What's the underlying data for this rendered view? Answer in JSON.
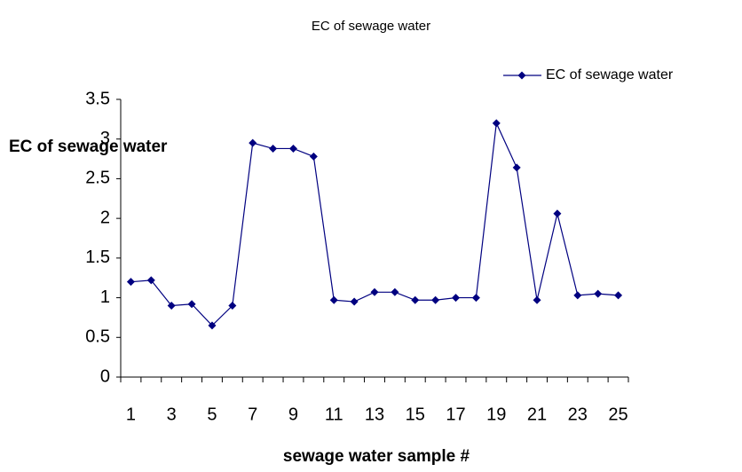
{
  "chart_data": {
    "type": "line",
    "title": "EC of sewage water",
    "x_label": "sewage water sample #",
    "y_label": "EC of sewage water",
    "categories": [
      "1",
      null,
      "3",
      null,
      "5",
      null,
      "7",
      null,
      "9",
      null,
      "11",
      null,
      "13",
      null,
      "15",
      null,
      "17",
      null,
      "19",
      null,
      "21",
      null,
      "23",
      null,
      "25"
    ],
    "series": [
      {
        "name": "EC of sewage water",
        "color": "#000080",
        "values": [
          1.2,
          1.22,
          0.9,
          0.92,
          0.65,
          0.9,
          2.95,
          2.88,
          2.88,
          2.78,
          0.97,
          0.95,
          1.07,
          1.07,
          0.97,
          0.97,
          1.0,
          1.0,
          3.2,
          2.64,
          0.97,
          2.06,
          1.03,
          1.05,
          1.03
        ]
      }
    ],
    "ylim": [
      0,
      3.5
    ],
    "yticks": [
      0,
      0.5,
      1,
      1.5,
      2,
      2.5,
      3,
      3.5
    ],
    "grid": false,
    "legend": "top-right"
  }
}
